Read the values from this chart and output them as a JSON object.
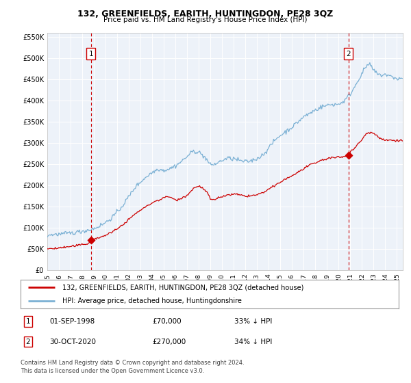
{
  "title": "132, GREENFIELDS, EARITH, HUNTINGDON, PE28 3QZ",
  "subtitle": "Price paid vs. HM Land Registry's House Price Index (HPI)",
  "legend_line1": "132, GREENFIELDS, EARITH, HUNTINGDON, PE28 3QZ (detached house)",
  "legend_line2": "HPI: Average price, detached house, Huntingdonshire",
  "annotation1_date": "01-SEP-1998",
  "annotation1_price": "£70,000",
  "annotation1_hpi": "33% ↓ HPI",
  "annotation2_date": "30-OCT-2020",
  "annotation2_price": "£270,000",
  "annotation2_hpi": "34% ↓ HPI",
  "footnote1": "Contains HM Land Registry data © Crown copyright and database right 2024.",
  "footnote2": "This data is licensed under the Open Government Licence v3.0.",
  "sale1_year": 1998.75,
  "sale1_value": 70000,
  "sale2_year": 2020.83,
  "sale2_value": 270000,
  "property_color": "#cc0000",
  "hpi_color": "#7ab0d4",
  "vline_color": "#cc0000",
  "dot_color": "#cc0000",
  "plot_bg_color": "#edf2f9",
  "grid_color": "#ffffff",
  "ylim_max": 560000,
  "ylim_min": 0,
  "xlim_min": 1995.0,
  "xlim_max": 2025.5,
  "yticks": [
    0,
    50000,
    100000,
    150000,
    200000,
    250000,
    300000,
    350000,
    400000,
    450000,
    500000,
    550000
  ],
  "ylabels": [
    "£0",
    "£50K",
    "£100K",
    "£150K",
    "£200K",
    "£250K",
    "£300K",
    "£350K",
    "£400K",
    "£450K",
    "£500K",
    "£550K"
  ]
}
